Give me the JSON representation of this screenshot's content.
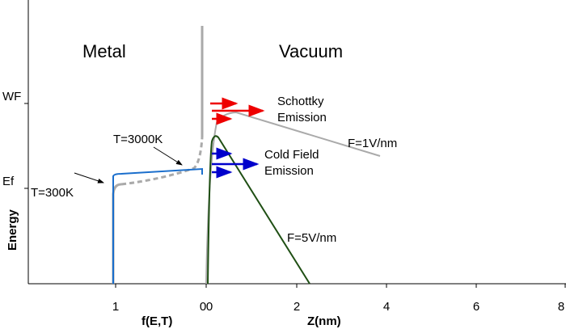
{
  "regions": {
    "metal": "Metal",
    "vacuum": "Vacuum"
  },
  "y_axis": {
    "label": "Energy",
    "ticks": [
      "WF",
      "Ef"
    ]
  },
  "x_axis_f": {
    "label": "f(E,T)",
    "ticks": [
      1,
      0
    ]
  },
  "x_axis_z": {
    "label": "Z(nm)",
    "ticks": [
      0,
      2,
      4,
      6,
      8
    ]
  },
  "annotations": {
    "t300": "T=300K",
    "t3000": "T=3000K",
    "schottky": [
      "Schottky",
      "Emission"
    ],
    "cold": [
      "Cold Field",
      "Emission"
    ],
    "f1": "F=1V/nm",
    "f5": "F=5V/nm"
  }
}
